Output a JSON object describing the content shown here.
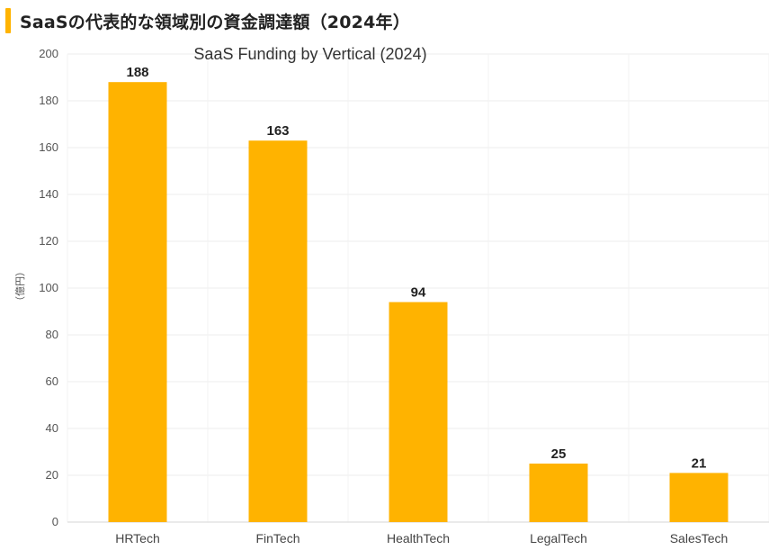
{
  "header": {
    "title": "SaaSの代表的な領域別の資金調達額（2024年）",
    "accent_color": "#FFB300"
  },
  "chart_data": {
    "type": "bar",
    "title": "SaaS Funding by Vertical (2024)",
    "categories": [
      "HRTech",
      "FinTech",
      "HealthTech",
      "LegalTech",
      "SalesTech"
    ],
    "values": [
      188,
      163,
      94,
      25,
      21
    ],
    "ylabel": "（億円）",
    "xlabel": "",
    "ylim": [
      0,
      200
    ],
    "yticks": [
      0,
      20,
      40,
      60,
      80,
      100,
      120,
      140,
      160,
      180,
      200
    ],
    "grid": true,
    "legend": "none",
    "bar_color": "#FFB300",
    "data_labels": true
  }
}
